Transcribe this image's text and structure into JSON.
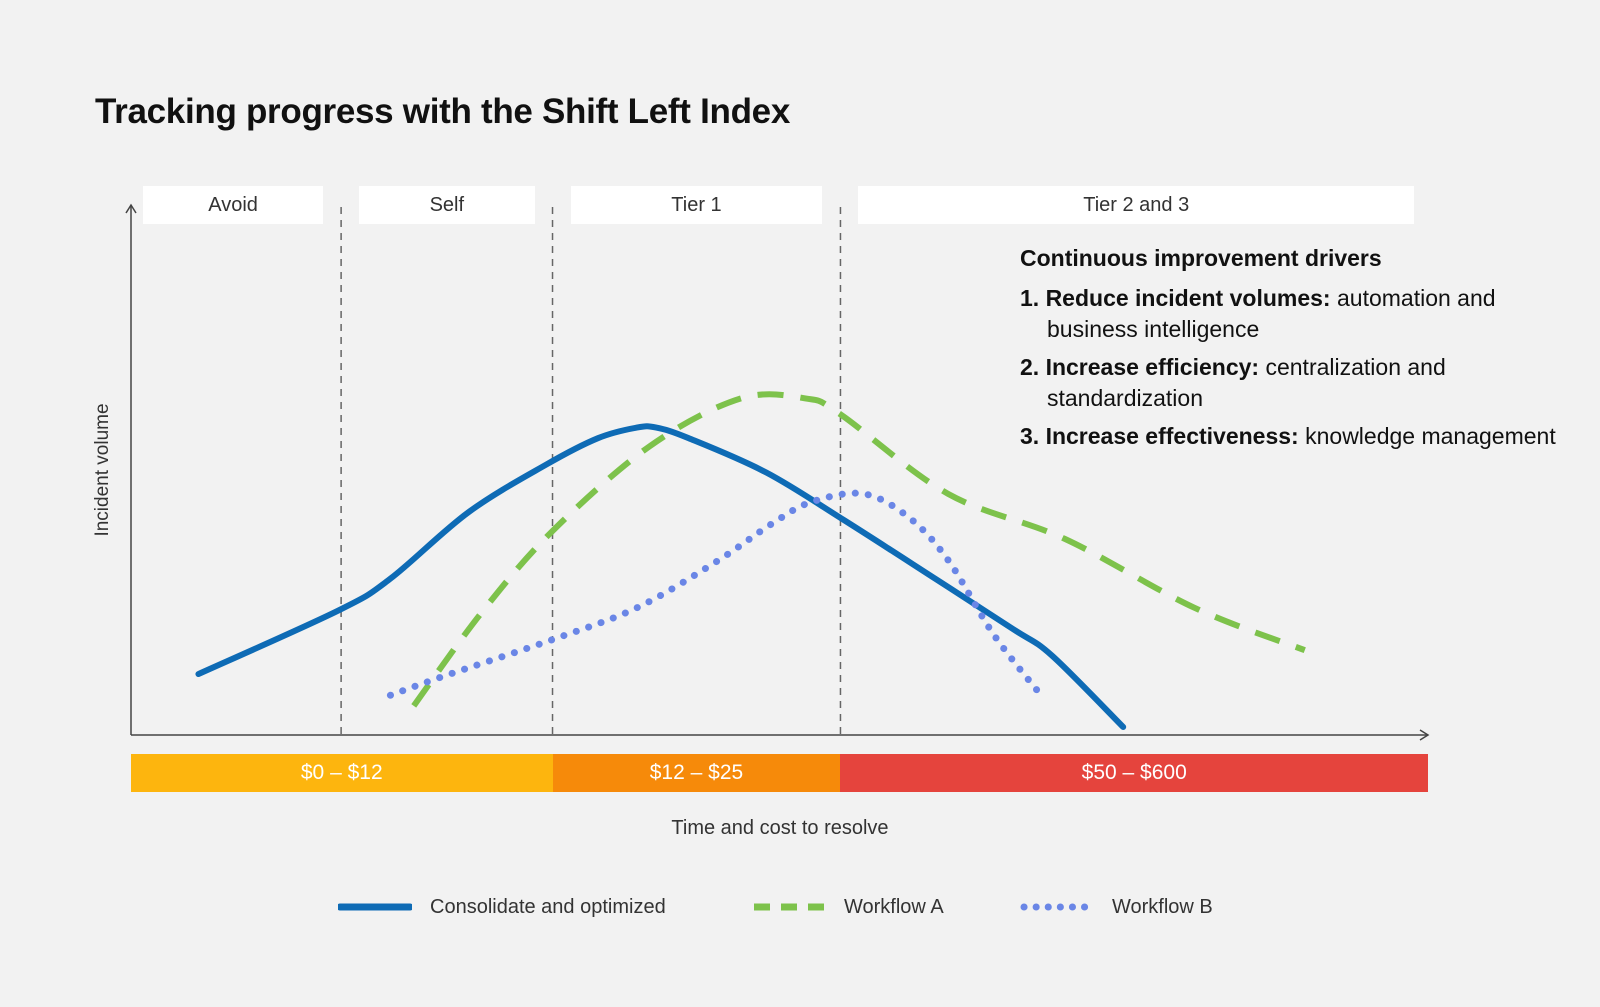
{
  "page": {
    "title": "Tracking progress with the Shift Left Index"
  },
  "drivers": {
    "heading": "Continuous improvement drivers",
    "items": [
      {
        "label": "1. Reduce incident volumes:",
        "text": " automation and business intelligence"
      },
      {
        "label": "2. Increase efficiency:",
        "text": " centralization and standardization"
      },
      {
        "label": "3. Increase effectiveness:",
        "text": " knowledge management"
      }
    ]
  },
  "chart_data": {
    "type": "line",
    "title": "Tracking progress with the Shift Left Index",
    "xlabel": "Time and cost to resolve",
    "ylabel": "Incident volume",
    "xlim": [
      0,
      100
    ],
    "ylim": [
      0,
      100
    ],
    "grid": false,
    "legend_position": "bottom",
    "tiers": [
      {
        "name": "Avoid",
        "x_start": 0,
        "x_end": 16.2
      },
      {
        "name": "Self",
        "x_start": 16.2,
        "x_end": 32.5
      },
      {
        "name": "Tier 1",
        "x_start": 32.5,
        "x_end": 54.7
      },
      {
        "name": "Tier 2 and 3",
        "x_start": 54.7,
        "x_end": 100
      }
    ],
    "cost_ranges": [
      {
        "label": "$0 – $12",
        "x_start": 0,
        "x_end": 32.5,
        "color": "#FDB50E"
      },
      {
        "label": "$12 – $25",
        "x_start": 32.5,
        "x_end": 54.7,
        "color": "#F68A0A"
      },
      {
        "label": "$50 – $600",
        "x_start": 54.7,
        "x_end": 100,
        "color": "#E5443D"
      }
    ],
    "series": [
      {
        "name": "Consolidate and optimized",
        "style": "solid",
        "color": "#0E6BB5",
        "x": [
          5.2,
          16,
          20,
          26,
          32,
          36,
          39,
          40.5,
          43,
          49,
          55,
          62,
          68,
          71,
          76.5
        ],
        "y": [
          11.5,
          23.5,
          29.5,
          42,
          51,
          56,
          58,
          58,
          56,
          49.5,
          40.5,
          29.5,
          20,
          15,
          1.5
        ]
      },
      {
        "name": "Workflow A",
        "style": "dashed",
        "color": "#7DC24B",
        "x": [
          21.8,
          27,
          32.5,
          40,
          47,
          52,
          54.7,
          63,
          72,
          82,
          90.5
        ],
        "y": [
          5.5,
          23,
          38.5,
          54.5,
          63.5,
          63.5,
          60.5,
          45.5,
          37,
          24,
          16
        ]
      },
      {
        "name": "Workflow B",
        "style": "dotted",
        "color": "#6A86E6",
        "x": [
          20,
          24,
          32.5,
          39,
          45,
          49.5,
          52.5,
          56.5,
          60,
          63,
          66.5,
          70
        ],
        "y": [
          7.5,
          11,
          18,
          24,
          32.5,
          40,
          44,
          45.5,
          41,
          33,
          19,
          8
        ]
      }
    ]
  }
}
